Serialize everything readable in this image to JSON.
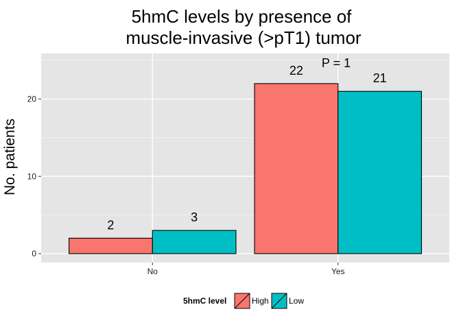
{
  "chart_data": {
    "type": "bar",
    "title_lines": [
      "5hmC levels by presence of",
      "muscle-invasive (>pT1) tumor"
    ],
    "xlabel": "",
    "ylabel": "No. patients",
    "categories": [
      "No",
      "Yes"
    ],
    "series": [
      {
        "name": "High",
        "values": [
          2,
          22
        ],
        "color": "#F8766D"
      },
      {
        "name": "Low",
        "values": [
          3,
          21
        ],
        "color": "#00BFC4"
      }
    ],
    "y_ticks": [
      0,
      10,
      20
    ],
    "ylim": [
      -1.15,
      25.9
    ],
    "grid": true,
    "legend": {
      "title": "5hmC level",
      "position": "bottom"
    },
    "annotation": {
      "text": "P = 1",
      "category": "Yes",
      "y": 26
    }
  },
  "style": {
    "panel_bg": "#E5E5E5",
    "grid_major": "#FFFFFF",
    "grid_minor": "#F2F2F2",
    "bar_outline": "#000000"
  }
}
